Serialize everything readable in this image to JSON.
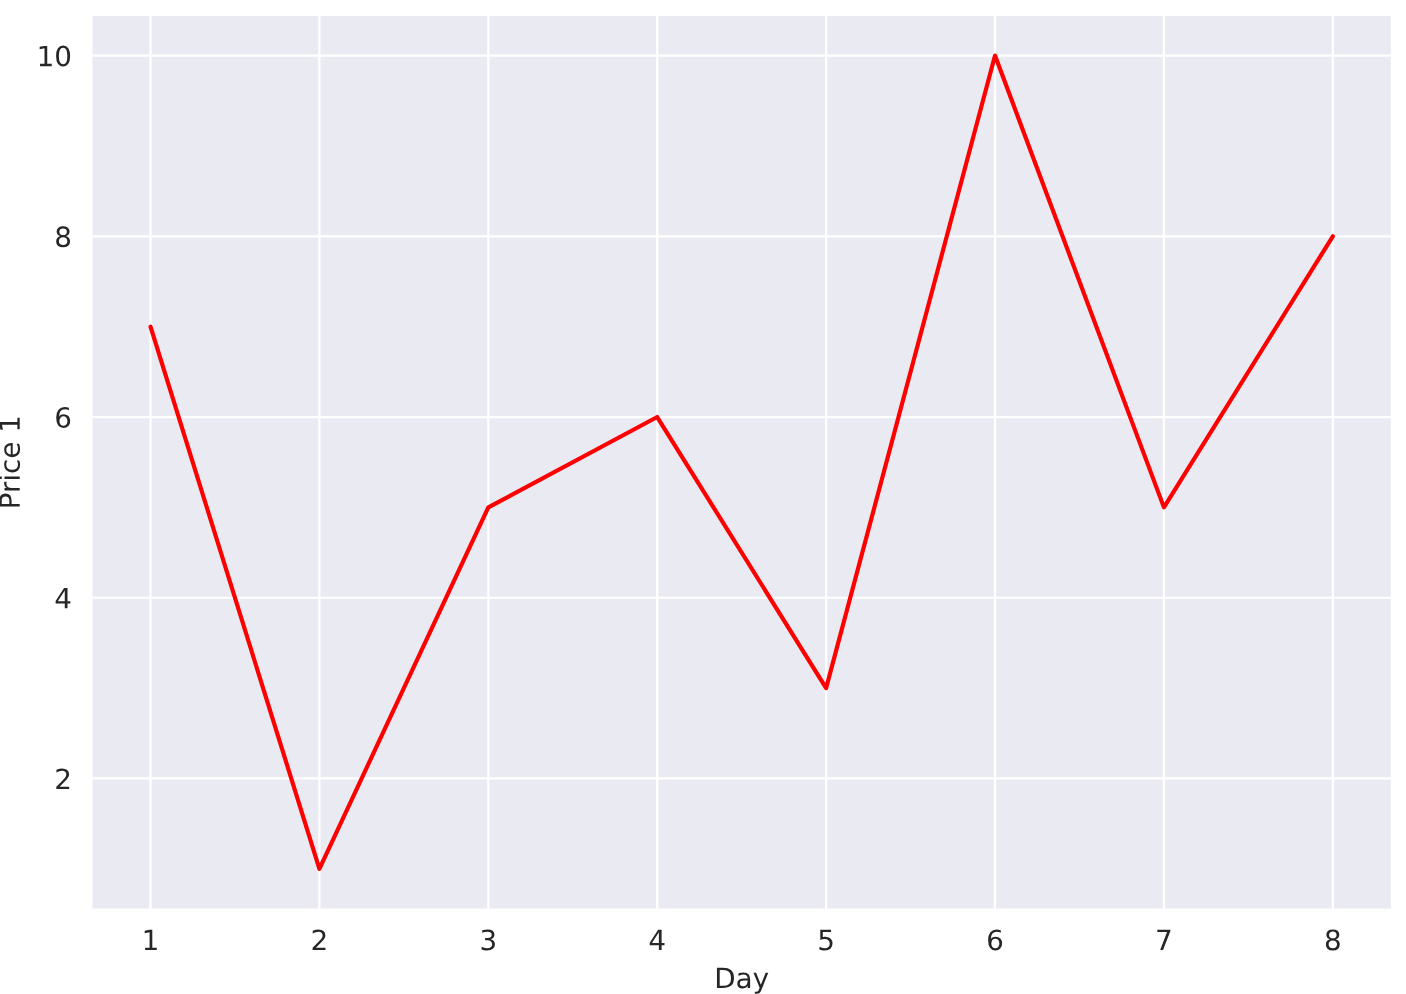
{
  "chart_data": {
    "type": "line",
    "xlabel": "Day",
    "ylabel": "Price 1",
    "x": [
      1,
      2,
      3,
      4,
      5,
      6,
      7,
      8
    ],
    "series": [
      {
        "color": "#ff0000",
        "values": [
          7,
          1,
          5,
          6,
          3,
          10,
          5,
          8
        ]
      }
    ],
    "xlim": [
      0.65,
      8.35
    ],
    "xticks": [
      1,
      2,
      3,
      4,
      5,
      6,
      7,
      8
    ],
    "ylim": [
      0.55,
      10.45
    ],
    "yticks": [
      2,
      4,
      6,
      8,
      10
    ],
    "grid": true,
    "marker": "none",
    "line_style": "solid"
  }
}
